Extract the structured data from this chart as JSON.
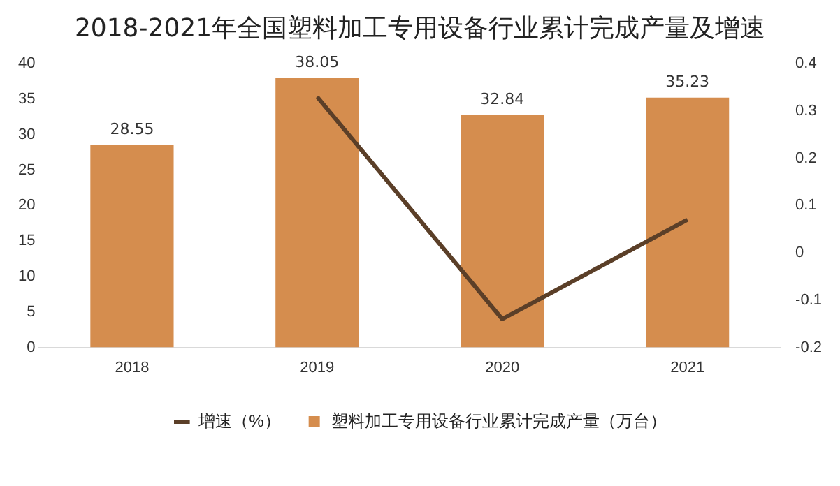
{
  "chart_data": {
    "type": "bar",
    "title": "2018-2021年全国塑料加工专用设备行业累计完成产量及增速",
    "categories": [
      "2018",
      "2019",
      "2020",
      "2021"
    ],
    "series": [
      {
        "name": "塑料加工专用设备行业累计完成产量（万台）",
        "color": "#d58d4e",
        "values": [
          28.55,
          38.05,
          32.84,
          35.23
        ],
        "value_labels": [
          "28.55",
          "38.05",
          "32.84",
          "35.23"
        ]
      },
      {
        "name": "增速（%）",
        "type": "line",
        "axis": "y2",
        "color": "#5b3f28",
        "values": [
          null,
          0.33,
          -0.14,
          0.07
        ],
        "marker": "none"
      }
    ],
    "ylim": [
      0,
      40
    ],
    "yticks": [
      0,
      5,
      10,
      15,
      20,
      25,
      30,
      35,
      40
    ],
    "y2lim": [
      -0.2,
      0.4
    ],
    "y2ticks": [
      -0.2,
      -0.1,
      0,
      0.1,
      0.2,
      0.3,
      0.4
    ],
    "grid": false,
    "legend": "bottom"
  }
}
